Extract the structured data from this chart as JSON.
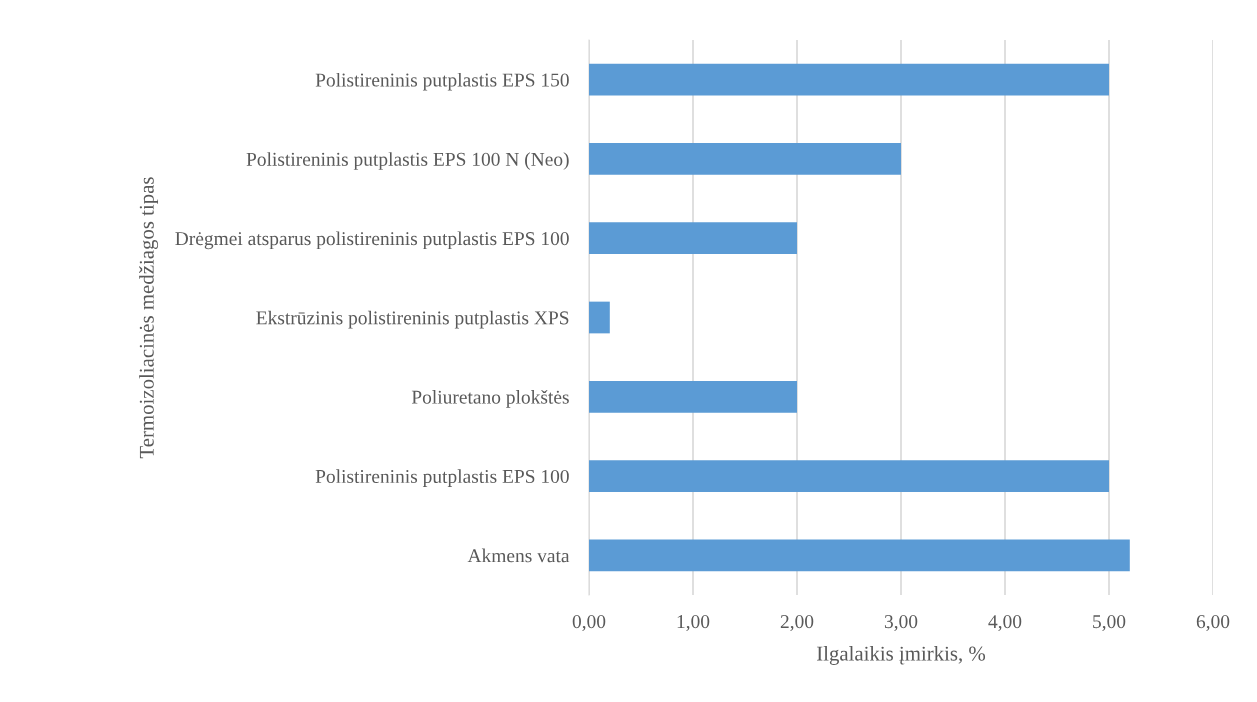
{
  "chart_data": {
    "type": "bar",
    "orientation": "horizontal",
    "categories": [
      "Polistireninis putplastis EPS 150",
      "Polistireninis putplastis EPS 100 N (Neo)",
      "Drėgmei atsparus polistireninis putplastis EPS 100",
      "Ekstrūzinis polistireninis putplastis XPS",
      "Poliuretano plokštės",
      "Polistireninis putplastis EPS 100",
      "Akmens vata"
    ],
    "values": [
      5.0,
      3.0,
      2.0,
      0.2,
      2.0,
      5.0,
      5.2
    ],
    "color": "#5b9bd5",
    "xlabel": "Ilgalaikis įmirkis, %",
    "ylabel": "Termoizoliacinės medžiagos tipas",
    "xlim": [
      0,
      6
    ],
    "xticks": [
      {
        "value": 0,
        "label": "0,00"
      },
      {
        "value": 1,
        "label": "1,00"
      },
      {
        "value": 2,
        "label": "2,00"
      },
      {
        "value": 3,
        "label": "3,00"
      },
      {
        "value": 4,
        "label": "4,00"
      },
      {
        "value": 5,
        "label": "5,00"
      },
      {
        "value": 6,
        "label": "6,00"
      }
    ],
    "grid": "x",
    "legend": false
  }
}
